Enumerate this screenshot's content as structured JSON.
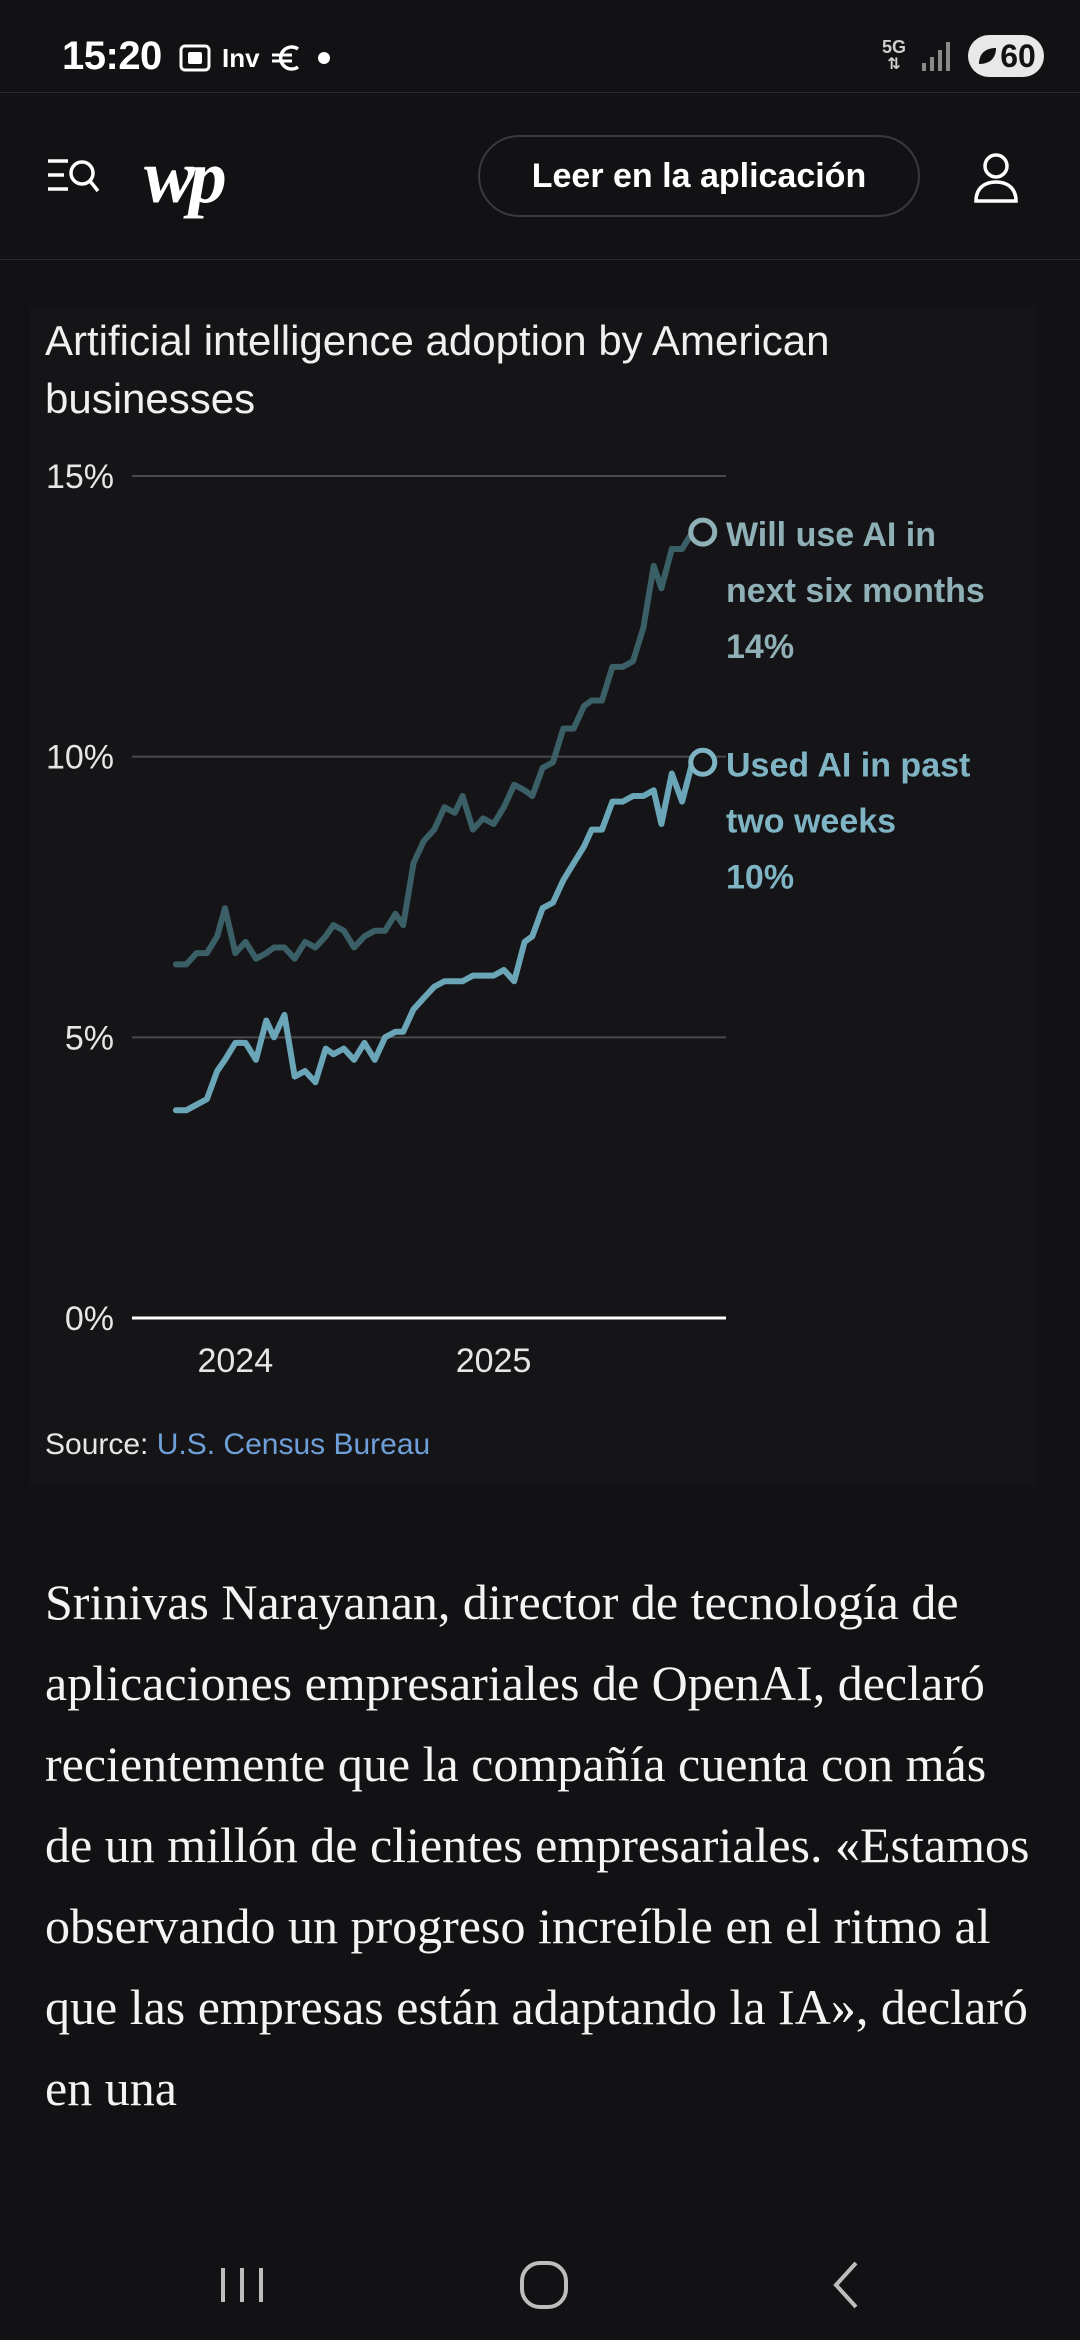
{
  "status_bar": {
    "time": "15:20",
    "notif_text": "Inv",
    "network": "5G",
    "battery": "60"
  },
  "header": {
    "logo": "wp",
    "open_app_label": "Leer en la aplicación"
  },
  "chart_data": {
    "type": "line",
    "title": "Artificial intelligence adoption by American businesses",
    "y_ticks": [
      "15%",
      "10%",
      "5%",
      "0%"
    ],
    "x_ticks": [
      "2024",
      "2025"
    ],
    "ylim": [
      0,
      15
    ],
    "xlim": [
      2023.6,
      2025.9
    ],
    "series": [
      {
        "name": "Will use AI in next six months",
        "label_lines": [
          "Will use AI in",
          "next six months"
        ],
        "end_label": "14%",
        "color": "#3b5f66",
        "label_color": "#8fb0b6",
        "x": [
          2023.77,
          2023.81,
          2023.85,
          2023.89,
          2023.93,
          2023.96,
          2024.0,
          2024.04,
          2024.08,
          2024.12,
          2024.15,
          2024.19,
          2024.23,
          2024.27,
          2024.31,
          2024.35,
          2024.38,
          2024.42,
          2024.46,
          2024.5,
          2024.54,
          2024.58,
          2024.62,
          2024.65,
          2024.69,
          2024.73,
          2024.77,
          2024.81,
          2024.85,
          2024.88,
          2024.92,
          2024.96,
          2025.0,
          2025.04,
          2025.08,
          2025.12,
          2025.15,
          2025.19,
          2025.23,
          2025.27,
          2025.31,
          2025.35,
          2025.38,
          2025.42,
          2025.46,
          2025.5,
          2025.54,
          2025.58,
          2025.62,
          2025.65,
          2025.69,
          2025.73,
          2025.77,
          2025.81
        ],
        "values": [
          6.3,
          6.3,
          6.5,
          6.5,
          6.8,
          7.3,
          6.5,
          6.7,
          6.4,
          6.5,
          6.6,
          6.6,
          6.4,
          6.7,
          6.6,
          6.8,
          7.0,
          6.9,
          6.6,
          6.8,
          6.9,
          6.9,
          7.2,
          7.0,
          8.1,
          8.5,
          8.7,
          9.1,
          9.0,
          9.3,
          8.7,
          8.9,
          8.8,
          9.1,
          9.5,
          9.4,
          9.3,
          9.8,
          9.9,
          10.5,
          10.5,
          10.9,
          11.0,
          11.0,
          11.6,
          11.6,
          11.7,
          12.3,
          13.4,
          13.0,
          13.7,
          13.7,
          14.0,
          14.0
        ]
      },
      {
        "name": "Used AI in past two weeks",
        "label_lines": [
          "Used AI in past",
          "two weeks"
        ],
        "end_label": "10%",
        "color": "#6aa6b8",
        "label_color": "#7fb4c4",
        "x": [
          2023.77,
          2023.81,
          2023.85,
          2023.89,
          2023.93,
          2023.96,
          2024.0,
          2024.04,
          2024.08,
          2024.12,
          2024.15,
          2024.19,
          2024.23,
          2024.27,
          2024.31,
          2024.35,
          2024.38,
          2024.42,
          2024.46,
          2024.5,
          2024.54,
          2024.58,
          2024.62,
          2024.65,
          2024.69,
          2024.73,
          2024.77,
          2024.81,
          2024.85,
          2024.88,
          2024.92,
          2024.96,
          2025.0,
          2025.04,
          2025.08,
          2025.12,
          2025.15,
          2025.19,
          2025.23,
          2025.27,
          2025.31,
          2025.35,
          2025.38,
          2025.42,
          2025.46,
          2025.5,
          2025.54,
          2025.58,
          2025.62,
          2025.65,
          2025.69,
          2025.73,
          2025.77,
          2025.81
        ],
        "values": [
          3.7,
          3.7,
          3.8,
          3.9,
          4.4,
          4.6,
          4.9,
          4.9,
          4.6,
          5.3,
          5.0,
          5.4,
          4.3,
          4.4,
          4.2,
          4.8,
          4.7,
          4.8,
          4.6,
          4.9,
          4.6,
          5.0,
          5.1,
          5.1,
          5.5,
          5.7,
          5.9,
          6.0,
          6.0,
          6.0,
          6.1,
          6.1,
          6.1,
          6.2,
          6.0,
          6.7,
          6.8,
          7.3,
          7.4,
          7.8,
          8.1,
          8.4,
          8.7,
          8.7,
          9.2,
          9.2,
          9.3,
          9.3,
          9.4,
          8.8,
          9.7,
          9.2,
          9.9,
          9.9
        ]
      }
    ]
  },
  "source": {
    "prefix": "Source: ",
    "link": "U.S. Census Bureau"
  },
  "article": {
    "paragraph": "Srinivas Narayanan, director de tecnología de aplicaciones empresariales de OpenAI, declaró recientemente que la compañía cuenta con más de un millón de clientes empresariales. «Estamos observando un progreso increíble en el ritmo al que las empresas están adaptando la IA», declaró en una"
  }
}
